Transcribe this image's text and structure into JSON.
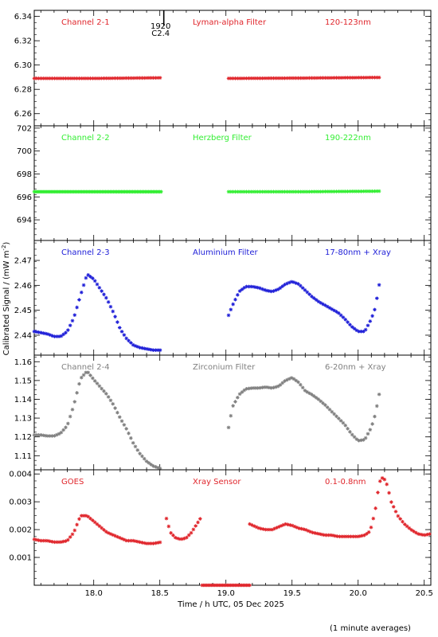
{
  "chart_data": {
    "type": "scatter",
    "shared_x": {
      "label": "Time / h UTC, 05 Dec 2025",
      "range": [
        17.55,
        20.55
      ],
      "ticks": [
        "18.0",
        "18.5",
        "19.0",
        "19.5",
        "20.0",
        "20.5"
      ]
    },
    "ylabel": "Calibrated Signal / (mW m⁻²)",
    "footnote": "(1 minute averages)",
    "event_marker": {
      "x": 18.53,
      "labels": [
        "1920",
        "C2.4"
      ]
    },
    "panels": [
      {
        "channel": "Channel 2-1",
        "filter": "Lyman-alpha Filter",
        "band": "120-123nm",
        "color": "#e0262c",
        "ylim": [
          6.25,
          6.345
        ],
        "yticks": [
          "6.26",
          "6.28",
          "6.30",
          "6.32",
          "6.34"
        ],
        "segments": [
          {
            "x": [
              17.55,
              18.0,
              18.51
            ],
            "y": [
              6.289,
              6.289,
              6.2895
            ]
          },
          {
            "x": [
              19.02,
              19.6,
              20.17
            ],
            "y": [
              6.289,
              6.2893,
              6.2898
            ]
          }
        ]
      },
      {
        "channel": "Channel 2-2",
        "filter": "Herzberg Filter",
        "band": "190-222nm",
        "color": "#33ee33",
        "ylim": [
          692.2,
          702.2
        ],
        "yticks": [
          "694",
          "696",
          "698",
          "700",
          "702"
        ],
        "segments": [
          {
            "x": [
              17.55,
              18.0,
              18.51
            ],
            "y": [
              696.45,
              696.45,
              696.45
            ]
          },
          {
            "x": [
              19.02,
              19.6,
              20.17
            ],
            "y": [
              696.45,
              696.45,
              696.5
            ]
          }
        ]
      },
      {
        "channel": "Channel 2-3",
        "filter": "Aluminium Filter",
        "band": "17-80nm + Xray",
        "color": "#2020d8",
        "ylim": [
          2.432,
          2.478
        ],
        "yticks": [
          "2.44",
          "2.45",
          "2.46",
          "2.47"
        ],
        "segments": [
          {
            "x": [
              17.55,
              17.6,
              17.65,
              17.7,
              17.75,
              17.8,
              17.85,
              17.9,
              17.95,
              18.0,
              18.05,
              18.1,
              18.15,
              18.2,
              18.25,
              18.3,
              18.35,
              18.4,
              18.45,
              18.51
            ],
            "y": [
              2.4415,
              2.441,
              2.4405,
              2.4395,
              2.4395,
              2.4415,
              2.447,
              2.456,
              2.4645,
              2.4625,
              2.4585,
              2.4545,
              2.449,
              2.4425,
              2.4385,
              2.436,
              2.435,
              2.4345,
              2.434,
              2.434
            ]
          },
          {
            "x": [
              19.02,
              19.05,
              19.1,
              19.15,
              19.2,
              19.25,
              19.3,
              19.35,
              19.4,
              19.45,
              19.5,
              19.55,
              19.6,
              19.65,
              19.7,
              19.75,
              19.8,
              19.85,
              19.9,
              19.95,
              20.0,
              20.05,
              20.1,
              20.13,
              20.16
            ],
            "y": [
              2.448,
              2.452,
              2.4575,
              2.4595,
              2.4595,
              2.459,
              2.458,
              2.4575,
              2.4585,
              2.4605,
              2.4615,
              2.4605,
              2.458,
              2.4555,
              2.4535,
              2.452,
              2.4505,
              2.449,
              2.4465,
              2.4435,
              2.4415,
              2.4415,
              2.4465,
              2.451,
              2.4605
            ]
          }
        ]
      },
      {
        "channel": "Channel 2-4",
        "filter": "Zirconium Filter",
        "band": "6-20nm + Xray",
        "color": "#808080",
        "ylim": [
          1.1025,
          1.1635
        ],
        "yticks": [
          "1.11",
          "1.12",
          "1.13",
          "1.14",
          "1.15",
          "1.16"
        ],
        "segments": [
          {
            "x": [
              17.55,
              17.6,
              17.65,
              17.7,
              17.75,
              17.8,
              17.85,
              17.9,
              17.95,
              18.0,
              18.05,
              18.1,
              18.15,
              18.2,
              18.25,
              18.3,
              18.35,
              18.4,
              18.45,
              18.51
            ],
            "y": [
              1.121,
              1.121,
              1.1205,
              1.1205,
              1.122,
              1.126,
              1.137,
              1.151,
              1.155,
              1.1505,
              1.1465,
              1.1425,
              1.137,
              1.13,
              1.124,
              1.1165,
              1.111,
              1.107,
              1.1045,
              1.103
            ]
          },
          {
            "x": [
              19.02,
              19.05,
              19.1,
              19.15,
              19.2,
              19.25,
              19.3,
              19.35,
              19.4,
              19.45,
              19.5,
              19.55,
              19.6,
              19.65,
              19.7,
              19.75,
              19.8,
              19.85,
              19.9,
              19.95,
              20.0,
              20.05,
              20.1,
              20.13,
              20.16
            ],
            "y": [
              1.125,
              1.136,
              1.1425,
              1.1455,
              1.146,
              1.146,
              1.1465,
              1.146,
              1.147,
              1.15,
              1.1515,
              1.149,
              1.1445,
              1.1425,
              1.14,
              1.137,
              1.1335,
              1.13,
              1.1265,
              1.1215,
              1.118,
              1.1185,
              1.125,
              1.132,
              1.143
            ]
          }
        ]
      },
      {
        "channel": "GOES",
        "filter": "Xray Sensor",
        "band": "0.1-0.8nm",
        "color": "#e0262c",
        "ylim": [
          0.0,
          0.00415
        ],
        "yticks": [
          "0.001",
          "0.002",
          "0.003",
          "0.004"
        ],
        "segments": [
          {
            "x": [
              17.55,
              17.6,
              17.65,
              17.7,
              17.75,
              17.8,
              17.85,
              17.9,
              17.95,
              18.0,
              18.05,
              18.1,
              18.15,
              18.2,
              18.25,
              18.3,
              18.35,
              18.4,
              18.45,
              18.51
            ],
            "y": [
              0.00165,
              0.0016,
              0.0016,
              0.00155,
              0.00155,
              0.0016,
              0.0019,
              0.0025,
              0.0025,
              0.0023,
              0.0021,
              0.0019,
              0.0018,
              0.0017,
              0.0016,
              0.0016,
              0.00155,
              0.0015,
              0.0015,
              0.00155
            ]
          },
          {
            "x": [
              18.55,
              18.58,
              18.62,
              18.66,
              18.7,
              18.74,
              18.78,
              18.82
            ],
            "y": [
              0.0024,
              0.0019,
              0.0017,
              0.00165,
              0.0017,
              0.0019,
              0.0022,
              0.0025
            ]
          },
          {
            "x": [
              18.82,
              18.9,
              19.0,
              19.1,
              19.18
            ],
            "y": [
              0.0,
              0.0,
              0.0,
              0.0,
              0.0
            ]
          },
          {
            "x": [
              19.18,
              19.25,
              19.3,
              19.35,
              19.4,
              19.45,
              19.5,
              19.55,
              19.6,
              19.65,
              19.7,
              19.75,
              19.8,
              19.85,
              19.9,
              19.95,
              20.0,
              20.05,
              20.08,
              20.1,
              20.13,
              20.16,
              20.19,
              20.22,
              20.25,
              20.3,
              20.35,
              20.4,
              20.45,
              20.5,
              20.55
            ],
            "y": [
              0.0022,
              0.00205,
              0.002,
              0.002,
              0.0021,
              0.0022,
              0.00215,
              0.00205,
              0.002,
              0.0019,
              0.00185,
              0.0018,
              0.0018,
              0.00175,
              0.00175,
              0.00175,
              0.00175,
              0.0018,
              0.0019,
              0.0021,
              0.0027,
              0.0037,
              0.0039,
              0.0036,
              0.003,
              0.0025,
              0.0022,
              0.002,
              0.00185,
              0.0018,
              0.00185
            ]
          }
        ]
      }
    ]
  }
}
